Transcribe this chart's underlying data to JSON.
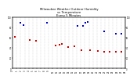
{
  "title": "Milwaukee Weather Outdoor Humidity\nvs Temperature\nEvery 5 Minutes",
  "title_fontsize": 2.8,
  "background_color": "#ffffff",
  "plot_bg_color": "#ffffff",
  "grid_color": "#aaaaaa",
  "blue_color": "#0000cc",
  "red_color": "#cc0000",
  "ylim": [
    0,
    100
  ],
  "tick_fontsize": 1.8,
  "blue_x": [
    10,
    14,
    44,
    84,
    91,
    94,
    97,
    118,
    133,
    140
  ],
  "blue_y": [
    88,
    84,
    88,
    83,
    82,
    88,
    90,
    72,
    68,
    68
  ],
  "red_x": [
    3,
    22,
    30,
    55,
    60,
    63,
    72,
    80,
    89,
    100,
    110,
    118,
    125,
    133,
    140
  ],
  "red_y": [
    62,
    55,
    54,
    44,
    46,
    48,
    41,
    43,
    36,
    35,
    34,
    33,
    32,
    33,
    32
  ],
  "xlim": [
    0,
    145
  ],
  "n_vgrid": 29,
  "ytick_vals": [
    0,
    20,
    40,
    60,
    80,
    100
  ],
  "ytick_labels_right": [
    "0",
    "20",
    "40",
    "60",
    "80",
    "100"
  ]
}
